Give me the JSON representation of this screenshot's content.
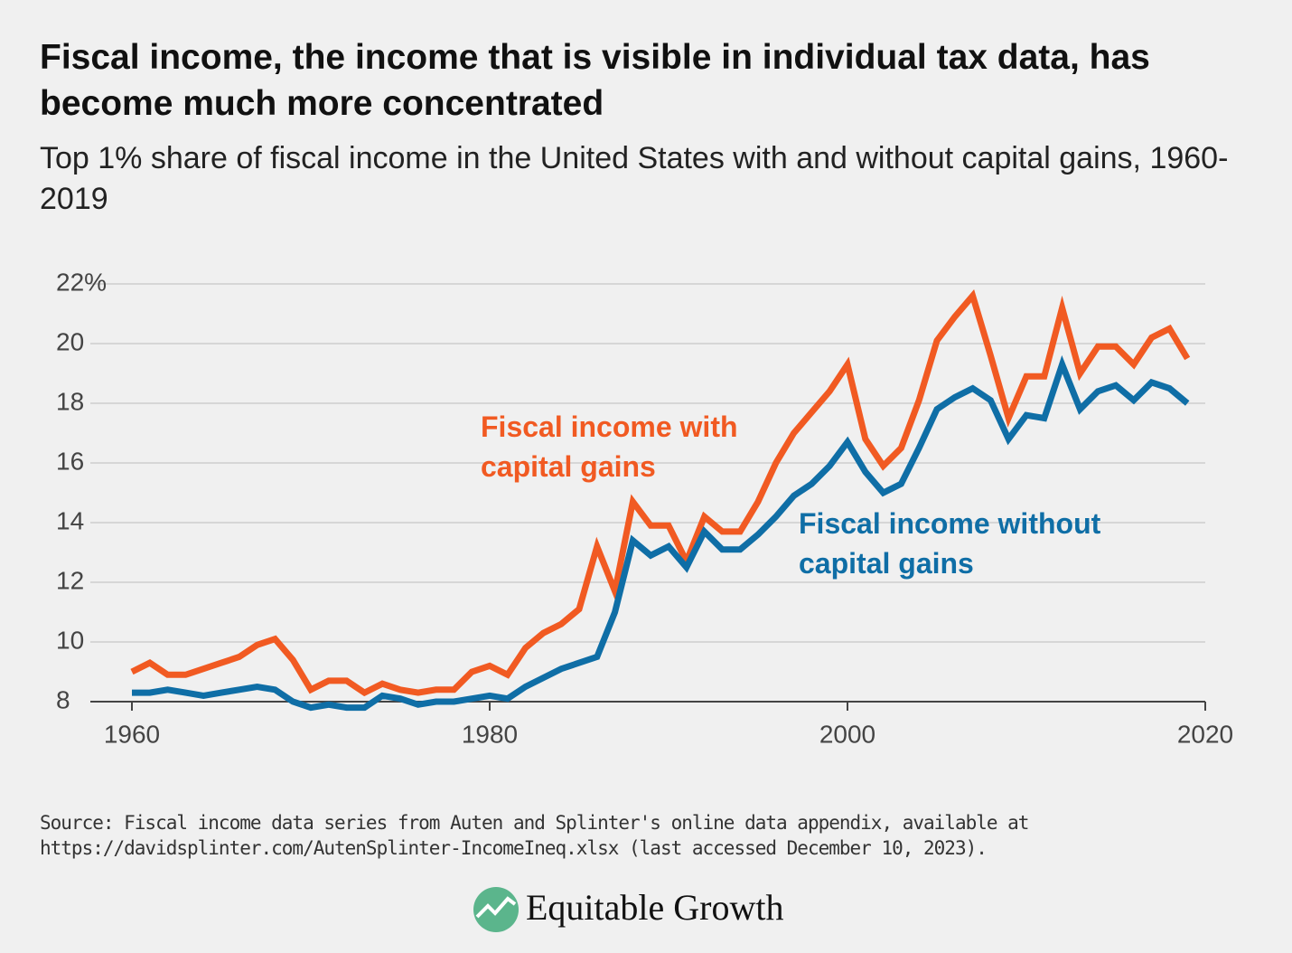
{
  "chart_data": {
    "type": "line",
    "title": "Fiscal income, the income that is visible in individual tax data, has become much more concentrated",
    "subtitle": "Top 1% share of fiscal income in the United States with and without capital gains, 1960-2019",
    "x": [
      1960,
      1961,
      1962,
      1963,
      1964,
      1965,
      1966,
      1967,
      1968,
      1969,
      1970,
      1971,
      1972,
      1973,
      1974,
      1975,
      1976,
      1977,
      1978,
      1979,
      1980,
      1981,
      1982,
      1983,
      1984,
      1985,
      1986,
      1987,
      1988,
      1989,
      1990,
      1991,
      1992,
      1993,
      1994,
      1995,
      1996,
      1997,
      1998,
      1999,
      2000,
      2001,
      2002,
      2003,
      2004,
      2005,
      2006,
      2007,
      2008,
      2009,
      2010,
      2011,
      2012,
      2013,
      2014,
      2015,
      2016,
      2017,
      2018,
      2019
    ],
    "series": [
      {
        "name": "Fiscal income with capital gains",
        "color": "#f15a22",
        "values": [
          9.0,
          9.3,
          8.9,
          8.9,
          9.1,
          9.3,
          9.5,
          9.9,
          10.1,
          9.4,
          8.4,
          8.7,
          8.7,
          8.3,
          8.6,
          8.4,
          8.3,
          8.4,
          8.4,
          9.0,
          9.2,
          8.9,
          9.8,
          10.3,
          10.6,
          11.1,
          13.2,
          11.7,
          14.7,
          13.9,
          13.9,
          12.7,
          14.2,
          13.7,
          13.7,
          14.7,
          16.0,
          17.0,
          17.7,
          18.4,
          19.3,
          16.8,
          15.9,
          16.5,
          18.1,
          20.1,
          20.9,
          21.6,
          19.6,
          17.5,
          18.9,
          18.9,
          21.2,
          19.0,
          19.9,
          19.9,
          19.3,
          20.2,
          20.5,
          19.5
        ]
      },
      {
        "name": "Fiscal income without capital gains",
        "color": "#0f6ea6",
        "values": [
          8.3,
          8.3,
          8.4,
          8.3,
          8.2,
          8.3,
          8.4,
          8.5,
          8.4,
          8.0,
          7.8,
          7.9,
          7.8,
          7.8,
          8.2,
          8.1,
          7.9,
          8.0,
          8.0,
          8.1,
          8.2,
          8.1,
          8.5,
          8.8,
          9.1,
          9.3,
          9.5,
          11.0,
          13.4,
          12.9,
          13.2,
          12.5,
          13.7,
          13.1,
          13.1,
          13.6,
          14.2,
          14.9,
          15.3,
          15.9,
          16.7,
          15.7,
          15.0,
          15.3,
          16.5,
          17.8,
          18.2,
          18.5,
          18.1,
          16.8,
          17.6,
          17.5,
          19.3,
          17.8,
          18.4,
          18.6,
          18.1,
          18.7,
          18.5,
          18.0
        ]
      }
    ],
    "xlim": [
      1960,
      2020
    ],
    "xticks": [
      1960,
      1980,
      2000,
      2020
    ],
    "ylim": [
      8,
      22
    ],
    "yticks": [
      8,
      10,
      12,
      14,
      16,
      18,
      {
        "value": 22,
        "label": "22%"
      },
      20
    ],
    "grid": true,
    "source": "Source: Fiscal income data series from Auten and Splinter's online data appendix, available at https://davidsplinter.com/AutenSplinter-IncomeIneq.xlsx (last accessed December 10, 2023).",
    "brand": "Equitable Growth"
  }
}
